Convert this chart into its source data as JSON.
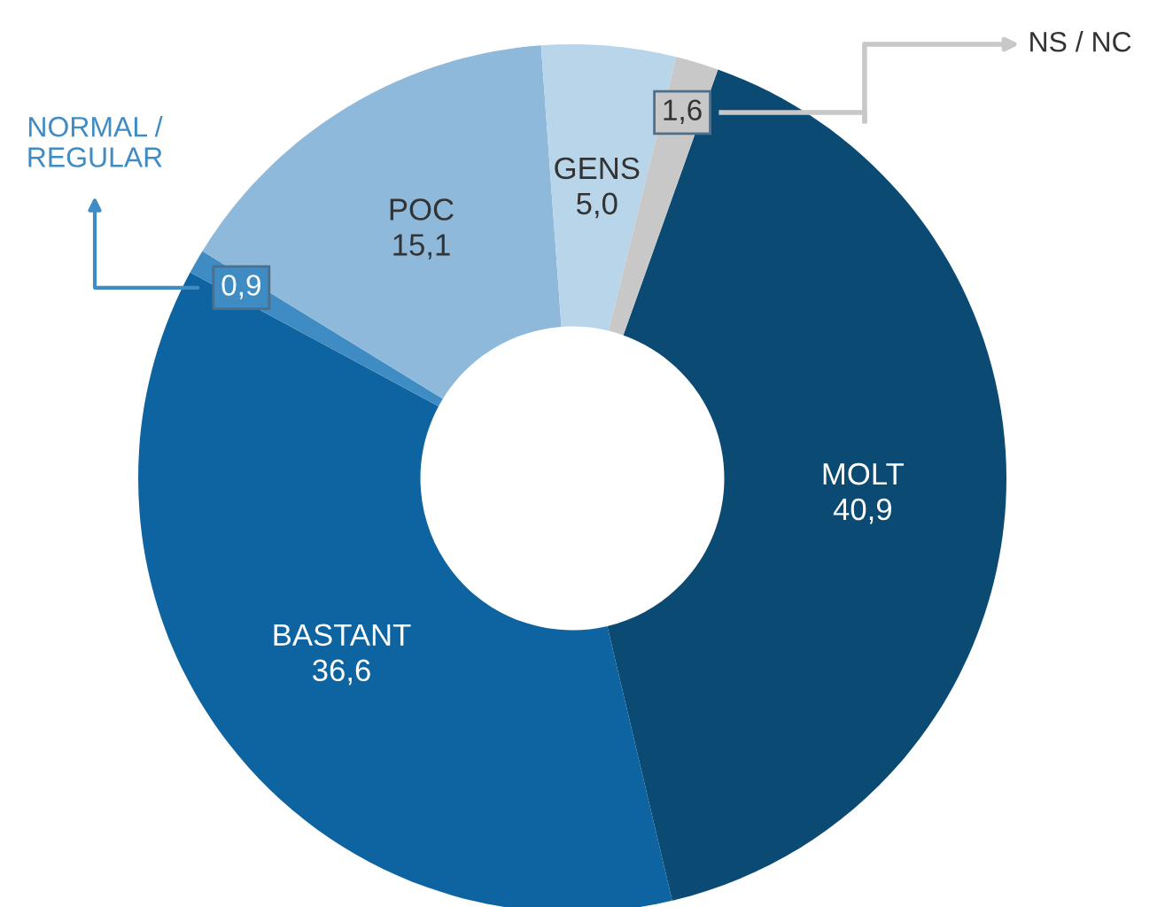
{
  "chart_data": {
    "type": "donut",
    "categories": [
      "MOLT",
      "BASTANT",
      "NORMAL /\nREGULAR",
      "POC",
      "GENS",
      "NS / NC"
    ],
    "values": [
      40.9,
      36.6,
      0.9,
      15.1,
      5.0,
      1.6
    ],
    "value_labels": [
      "40,9",
      "36,6",
      "0,9",
      "15,1",
      "5,0",
      "1,6"
    ],
    "colors": [
      "#0b4a72",
      "#0e64a0",
      "#3f8cc4",
      "#8fb9da",
      "#b9d5ea",
      "#c8c8c8"
    ]
  }
}
